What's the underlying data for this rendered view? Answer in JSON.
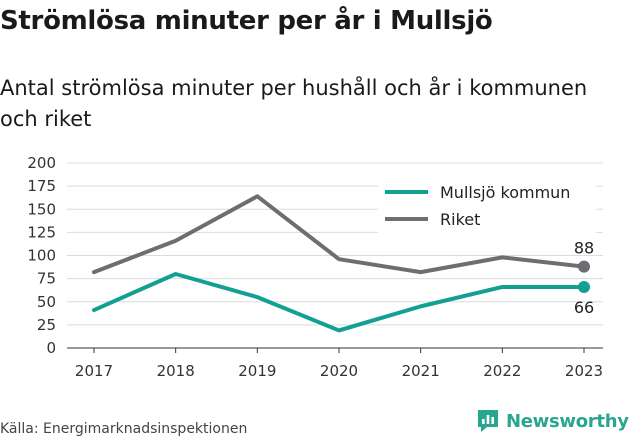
{
  "header": {
    "title": "Strömlösa minuter per år i Mullsjö",
    "subtitle": "Antal strömlösa minuter per hushåll och år i kommunen och riket"
  },
  "footer": {
    "source": "Källa: Energimarknadsinspektionen",
    "brand": "Newsworthy",
    "brand_icon": "bar-chart-icon"
  },
  "colors": {
    "mullsjo": "#12a093",
    "riket": "#6e6e72",
    "grid": "#dcdcdc",
    "brand": "#2aa58f"
  },
  "chart_data": {
    "type": "line",
    "x": [
      "2017",
      "2018",
      "2019",
      "2020",
      "2021",
      "2022",
      "2023"
    ],
    "ylim": [
      0,
      200
    ],
    "yticks": [
      0,
      25,
      50,
      75,
      100,
      125,
      150,
      175,
      200
    ],
    "grid": true,
    "legend_position": "top-right",
    "series": [
      {
        "name": "Mullsjö kommun",
        "values": [
          41,
          80,
          55,
          19,
          45,
          66,
          66
        ],
        "end_label": "66"
      },
      {
        "name": "Riket",
        "values": [
          82,
          116,
          164,
          96,
          82,
          98,
          88
        ],
        "end_label": "88"
      }
    ]
  }
}
